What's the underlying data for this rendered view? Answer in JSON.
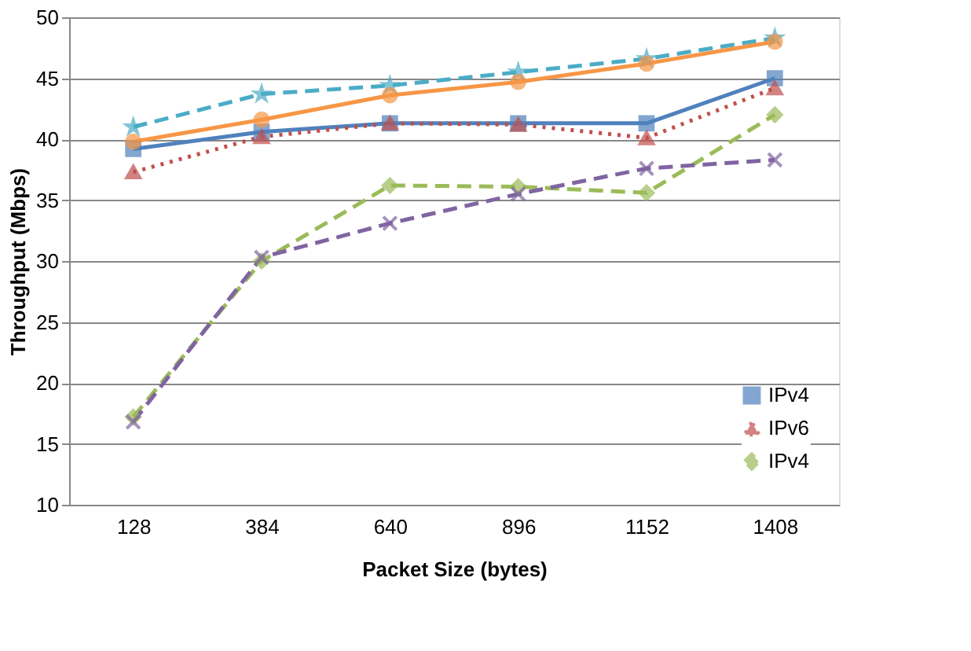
{
  "chart_data": {
    "type": "line",
    "xlabel": "Packet Size (bytes)",
    "ylabel": "Throughput (Mbps)",
    "categories": [
      "128",
      "384",
      "640",
      "896",
      "1152",
      "1408"
    ],
    "ylim": [
      10,
      50
    ],
    "yticks": [
      10,
      15,
      20,
      25,
      30,
      35,
      40,
      45,
      50
    ],
    "grid": "y",
    "legend": "bottom right",
    "series": [
      {
        "name": "IPv4",
        "color": "#4f81bd",
        "marker": "square",
        "line_style": "solid",
        "values": [
          39.2,
          40.6,
          41.3,
          41.3,
          41.3,
          45.0
        ]
      },
      {
        "name": "IPv6",
        "color": "#c0504d",
        "marker": "triangle",
        "line_style": "dotted",
        "values": [
          37.3,
          40.2,
          41.3,
          41.2,
          40.1,
          44.2
        ]
      },
      {
        "name": "IPv4",
        "color": "#9bbb59",
        "marker": "diamond",
        "line_style": "dashed",
        "values": [
          17.2,
          30.0,
          36.2,
          36.1,
          35.6,
          42.0
        ]
      },
      {
        "color": "#4bacc6",
        "marker": "star",
        "line_style": "dashed",
        "values": [
          41.0,
          43.7,
          44.4,
          45.5,
          46.6,
          48.3
        ]
      },
      {
        "color": "#f79646",
        "marker": "circle",
        "line_style": "solid",
        "values": [
          39.8,
          41.6,
          43.6,
          44.7,
          46.2,
          48.0
        ]
      },
      {
        "color": "#8064a2",
        "marker": "cross",
        "line_style": "dashed",
        "values": [
          16.8,
          30.3,
          33.1,
          35.5,
          37.6,
          38.3
        ]
      }
    ]
  }
}
